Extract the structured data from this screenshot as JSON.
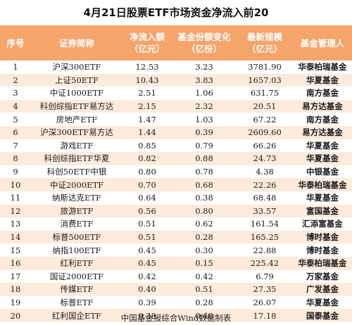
{
  "title": "4月21日股票ETF市场资金净流入前20",
  "headers": [
    "序号",
    "证券简称",
    "净流入额\n（亿元）",
    "基金份额变化\n（亿份）",
    "最新规模\n（亿元）",
    "基金管理人"
  ],
  "rows": [
    [
      "1",
      "沪深300ETF",
      "12.53",
      "3.23",
      "3781.90",
      "华泰柏瑞基金"
    ],
    [
      "2",
      "上证50ETF",
      "10.43",
      "3.83",
      "1657.03",
      "华夏基金"
    ],
    [
      "3",
      "中证1000ETF",
      "2.51",
      "1.06",
      "631.75",
      "南方基金"
    ],
    [
      "4",
      "科创综指ETF易方达",
      "2.15",
      "2.32",
      "20.51",
      "易方达基金"
    ],
    [
      "5",
      "房地产ETF",
      "1.47",
      "1.03",
      "67.22",
      "南方基金"
    ],
    [
      "6",
      "沪深300ETF易方达",
      "1.44",
      "0.39",
      "2609.60",
      "易方达基金"
    ],
    [
      "7",
      "游戏ETF",
      "0.85",
      "0.79",
      "66.26",
      "华夏基金"
    ],
    [
      "8",
      "科创综指ETF华夏",
      "0.82",
      "0.88",
      "24.73",
      "华夏基金"
    ],
    [
      "9",
      "科创50ETF中银",
      "0.80",
      "0.78",
      "4.38",
      "中银基金"
    ],
    [
      "10",
      "中证2000ETF",
      "0.70",
      "0.68",
      "22.26",
      "华泰柏瑞基金"
    ],
    [
      "11",
      "纳斯达克ETF",
      "0.64",
      "0.38",
      "68.48",
      "华夏基金"
    ],
    [
      "12",
      "旅游ETF",
      "0.56",
      "0.80",
      "33.57",
      "富国基金"
    ],
    [
      "13",
      "消费ETF",
      "0.51",
      "0.62",
      "161.54",
      "汇添富基金"
    ],
    [
      "14",
      "标普500ETF",
      "0.51",
      "0.28",
      "165.25",
      "博时基金"
    ],
    [
      "15",
      "纳指100ETF",
      "0.45",
      "0.30",
      "22.88",
      "博时基金"
    ],
    [
      "16",
      "红利ETF",
      "0.45",
      "0.15",
      "225.42",
      "华泰柏瑞基金"
    ],
    [
      "17",
      "国证2000ETF",
      "0.42",
      "0.42",
      "6.79",
      "万家基金"
    ],
    [
      "18",
      "传媒ETF",
      "0.40",
      "0.51",
      "27.35",
      "广发基金"
    ],
    [
      "19",
      "标普ETF",
      "0.39",
      "0.28",
      "26.07",
      "华夏基金"
    ],
    [
      "20",
      "红利国企ETF",
      "0.38",
      "0.40",
      "17.18",
      "国泰基金"
    ]
  ],
  "footer": "中国基金报综合Wind数据制表",
  "colors": {
    "header_bg": "#f5a46a",
    "stripe_bg": "#fdebdc",
    "header_text": "#ffffff"
  }
}
